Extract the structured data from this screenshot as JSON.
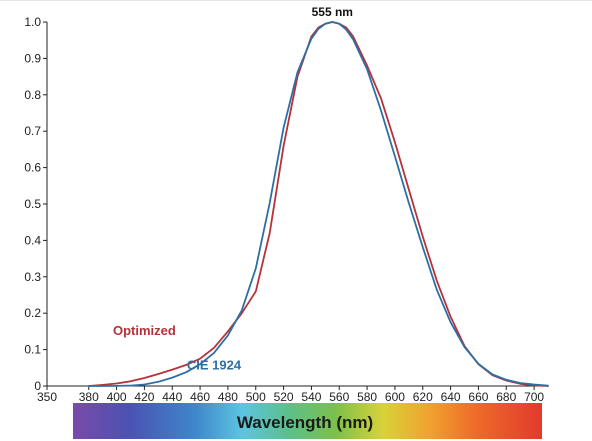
{
  "chart_data": {
    "type": "line",
    "title": "",
    "xlabel": "Wavelength (nm)",
    "ylabel": "",
    "xlim": [
      350,
      710
    ],
    "ylim": [
      0,
      1.0
    ],
    "x_ticks": [
      "350",
      "380",
      "400",
      "420",
      "440",
      "460",
      "480",
      "500",
      "520",
      "540",
      "560",
      "580",
      "600",
      "620",
      "640",
      "660",
      "680",
      "700"
    ],
    "y_ticks": [
      "0",
      "0.1",
      "0.2",
      "0.3",
      "0.4",
      "0.5",
      "0.6",
      "0.7",
      "0.8",
      "0.9",
      "1.0"
    ],
    "grid": false,
    "legend": "inline labels",
    "annotations": [
      {
        "text": "555 nm",
        "x": 555,
        "y": 1.0
      }
    ],
    "colorbar": "visible spectrum (violet to red)",
    "series": [
      {
        "name": "Optimized",
        "color": "#b5323a",
        "label_x": 420,
        "label_y": 0.14,
        "x": [
          380,
          390,
          400,
          410,
          420,
          430,
          440,
          450,
          460,
          470,
          480,
          490,
          500,
          510,
          520,
          530,
          540,
          545,
          550,
          555,
          560,
          565,
          570,
          580,
          590,
          600,
          610,
          620,
          630,
          640,
          650,
          660,
          670,
          680,
          690,
          700,
          710
        ],
        "y": [
          0.0,
          0.003,
          0.007,
          0.013,
          0.022,
          0.033,
          0.045,
          0.058,
          0.075,
          0.105,
          0.15,
          0.2,
          0.26,
          0.42,
          0.66,
          0.85,
          0.96,
          0.985,
          0.995,
          1.0,
          0.995,
          0.985,
          0.96,
          0.88,
          0.79,
          0.67,
          0.54,
          0.41,
          0.29,
          0.19,
          0.11,
          0.06,
          0.03,
          0.015,
          0.006,
          0.002,
          0.0
        ]
      },
      {
        "name": "CIE 1924",
        "color": "#2e6fa3",
        "label_x": 470,
        "label_y": 0.045,
        "x": [
          380,
          390,
          400,
          410,
          420,
          430,
          440,
          450,
          460,
          470,
          480,
          490,
          500,
          510,
          520,
          530,
          540,
          545,
          550,
          555,
          560,
          565,
          570,
          580,
          590,
          600,
          610,
          620,
          630,
          640,
          650,
          660,
          670,
          680,
          690,
          700,
          710
        ],
        "y": [
          0.0,
          0.0,
          0.0004,
          0.0012,
          0.004,
          0.0116,
          0.023,
          0.038,
          0.06,
          0.091,
          0.139,
          0.208,
          0.323,
          0.503,
          0.71,
          0.862,
          0.954,
          0.981,
          0.995,
          1.0,
          0.995,
          0.979,
          0.952,
          0.87,
          0.757,
          0.631,
          0.503,
          0.381,
          0.265,
          0.175,
          0.107,
          0.061,
          0.032,
          0.017,
          0.0082,
          0.0041,
          0.001
        ]
      }
    ]
  }
}
